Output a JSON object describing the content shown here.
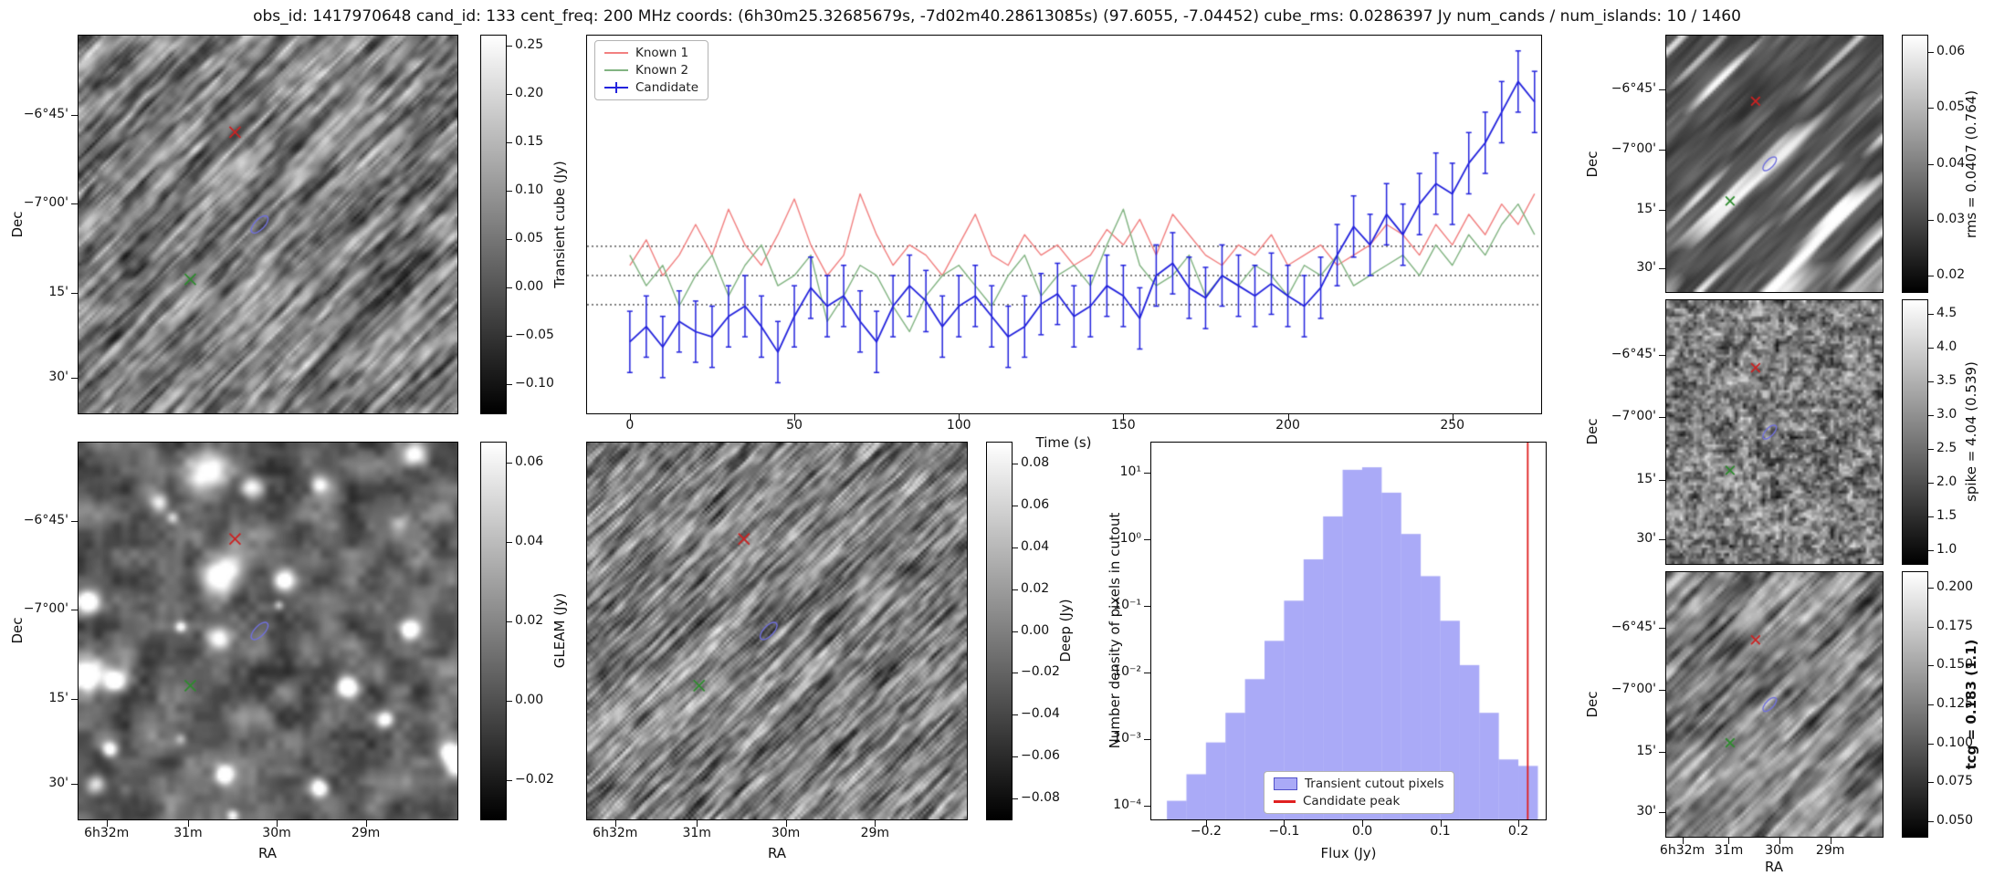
{
  "title": "obs_id: 1417970648 cand_id: 133 cent_freq: 200 MHz coords: (6h30m25.32685679s, -7d02m40.28613085s) (97.6055, -7.04452) cube_rms: 0.0286397 Jy num_cands / num_islands: 10 / 1460",
  "axes": {
    "dec_label": "Dec",
    "ra_label": "RA",
    "dec_ticks": [
      "−6°45'",
      "−7°00'",
      "15'",
      "30'"
    ],
    "ra_ticks": [
      "6h32m",
      "31m",
      "30m",
      "29m"
    ]
  },
  "colorbars": {
    "transient": {
      "label": "Transient cube (Jy)",
      "ticks": [
        {
          "v": 0.25,
          "t": "0.25"
        },
        {
          "v": 0.2,
          "t": "0.20"
        },
        {
          "v": 0.15,
          "t": "0.15"
        },
        {
          "v": 0.1,
          "t": "0.10"
        },
        {
          "v": 0.05,
          "t": "0.05"
        },
        {
          "v": 0.0,
          "t": "0.00"
        },
        {
          "v": -0.05,
          "t": "−0.05"
        },
        {
          "v": -0.1,
          "t": "−0.10"
        }
      ]
    },
    "gleam": {
      "label": "GLEAM (Jy)",
      "ticks": [
        {
          "v": 0.06,
          "t": "0.06"
        },
        {
          "v": 0.04,
          "t": "0.04"
        },
        {
          "v": 0.02,
          "t": "0.02"
        },
        {
          "v": 0.0,
          "t": "0.00"
        },
        {
          "v": -0.02,
          "t": "−0.02"
        }
      ]
    },
    "deep": {
      "label": "Deep (Jy)",
      "ticks": [
        {
          "v": 0.08,
          "t": "0.08"
        },
        {
          "v": 0.06,
          "t": "0.06"
        },
        {
          "v": 0.04,
          "t": "0.04"
        },
        {
          "v": 0.02,
          "t": "0.02"
        },
        {
          "v": 0.0,
          "t": "0.00"
        },
        {
          "v": -0.02,
          "t": "−0.02"
        },
        {
          "v": -0.04,
          "t": "−0.04"
        },
        {
          "v": -0.06,
          "t": "−0.06"
        },
        {
          "v": -0.08,
          "t": "−0.08"
        }
      ]
    },
    "rms": {
      "label": "rms = 0.0407 (0.764)",
      "ticks": [
        {
          "v": 0.06,
          "t": "0.06"
        },
        {
          "v": 0.05,
          "t": "0.05"
        },
        {
          "v": 0.04,
          "t": "0.04"
        },
        {
          "v": 0.03,
          "t": "0.03"
        },
        {
          "v": 0.02,
          "t": "0.02"
        }
      ]
    },
    "spike": {
      "label": "spike = 4.04 (0.539)",
      "ticks": [
        {
          "v": 4.5,
          "t": "4.5"
        },
        {
          "v": 4.0,
          "t": "4.0"
        },
        {
          "v": 3.5,
          "t": "3.5"
        },
        {
          "v": 3.0,
          "t": "3.0"
        },
        {
          "v": 2.5,
          "t": "2.5"
        },
        {
          "v": 2.0,
          "t": "2.0"
        },
        {
          "v": 1.5,
          "t": "1.5"
        },
        {
          "v": 1.0,
          "t": "1.0"
        }
      ]
    },
    "tcg": {
      "label": "tcg = 0.183 (1.1)",
      "ticks": [
        {
          "v": 0.2,
          "t": "0.200"
        },
        {
          "v": 0.175,
          "t": "0.175"
        },
        {
          "v": 0.15,
          "t": "0.150"
        },
        {
          "v": 0.125,
          "t": "0.125"
        },
        {
          "v": 0.1,
          "t": "0.100"
        },
        {
          "v": 0.075,
          "t": "0.075"
        },
        {
          "v": 0.05,
          "t": "0.050"
        }
      ]
    }
  },
  "markers": {
    "red_cross": [
      0.413,
      0.256
    ],
    "blue_ellipse": [
      0.478,
      0.5
    ],
    "green_cross": [
      0.295,
      0.645
    ],
    "colors": {
      "red": "#cc2222",
      "green": "#2e8b2e",
      "blue": "#7070dd"
    }
  },
  "chart_data": [
    {
      "id": "lightcurve",
      "type": "line",
      "xlabel": "Time (s)",
      "xlim": [
        -13,
        277
      ],
      "ylim": [
        -0.135,
        0.235
      ],
      "x_ticks": [
        0,
        50,
        100,
        150,
        200,
        250
      ],
      "hlines": [
        0.0286,
        0.0,
        -0.0286
      ],
      "legend": [
        "Known 1",
        "Known 2",
        "Candidate"
      ],
      "legend_position": "top-left",
      "colors": {
        "known1": "#f28080",
        "known2": "#82b482",
        "candidate": "#2323dd"
      },
      "x": [
        0,
        5,
        10,
        15,
        20,
        25,
        30,
        35,
        40,
        45,
        50,
        55,
        60,
        65,
        70,
        75,
        80,
        85,
        90,
        95,
        100,
        105,
        110,
        115,
        120,
        125,
        130,
        135,
        140,
        145,
        150,
        155,
        160,
        165,
        170,
        175,
        180,
        185,
        190,
        195,
        200,
        205,
        210,
        215,
        220,
        225,
        230,
        235,
        240,
        245,
        250,
        255,
        260,
        265,
        270,
        275
      ],
      "series": [
        {
          "name": "Known 1",
          "values": [
            0.01,
            0.035,
            0.0,
            0.02,
            0.05,
            0.02,
            0.065,
            0.03,
            0.01,
            0.04,
            0.075,
            0.03,
            0.0,
            0.02,
            0.08,
            0.04,
            0.01,
            0.03,
            0.02,
            0.0,
            0.03,
            0.06,
            0.02,
            0.01,
            0.04,
            0.02,
            0.03,
            0.01,
            0.02,
            0.045,
            0.03,
            0.055,
            0.02,
            0.06,
            0.04,
            0.02,
            0.01,
            0.03,
            0.02,
            0.04,
            0.01,
            0.02,
            0.03,
            0.01,
            0.02,
            0.03,
            0.05,
            0.04,
            0.02,
            0.05,
            0.03,
            0.06,
            0.04,
            0.07,
            0.05,
            0.08
          ]
        },
        {
          "name": "Known 2",
          "values": [
            0.02,
            -0.01,
            0.01,
            -0.03,
            0.0,
            0.02,
            -0.02,
            0.01,
            0.03,
            -0.01,
            0.0,
            0.02,
            -0.045,
            -0.02,
            0.01,
            0.0,
            -0.03,
            -0.055,
            -0.02,
            0.0,
            0.01,
            -0.01,
            -0.03,
            0.0,
            0.02,
            -0.02,
            0.0,
            0.01,
            -0.01,
            0.03,
            0.065,
            0.01,
            -0.01,
            0.0,
            0.02,
            -0.02,
            0.0,
            -0.01,
            0.01,
            0.0,
            -0.02,
            0.01,
            0.0,
            0.02,
            -0.01,
            0.0,
            0.01,
            0.02,
            0.0,
            0.03,
            0.01,
            0.04,
            0.02,
            0.05,
            0.07,
            0.04
          ]
        },
        {
          "name": "Candidate",
          "yerr": 0.03,
          "values": [
            -0.065,
            -0.05,
            -0.07,
            -0.045,
            -0.055,
            -0.06,
            -0.04,
            -0.03,
            -0.05,
            -0.075,
            -0.04,
            -0.012,
            -0.03,
            -0.02,
            -0.045,
            -0.065,
            -0.03,
            -0.01,
            -0.025,
            -0.05,
            -0.03,
            -0.02,
            -0.04,
            -0.06,
            -0.05,
            -0.028,
            -0.018,
            -0.04,
            -0.03,
            -0.01,
            -0.02,
            -0.042,
            0.0,
            0.012,
            -0.012,
            -0.022,
            0.0,
            -0.01,
            -0.02,
            -0.008,
            -0.02,
            -0.03,
            -0.012,
            0.02,
            0.048,
            0.03,
            0.06,
            0.04,
            0.07,
            0.09,
            0.08,
            0.11,
            0.13,
            0.16,
            0.19,
            0.17
          ]
        }
      ]
    },
    {
      "id": "flux-histogram",
      "type": "histogram",
      "xlabel": "Flux (Jy)",
      "ylabel": "Number density of pixels in cutout",
      "xlim": [
        -0.27,
        0.235
      ],
      "ylog_range": [
        -4.2,
        1.45
      ],
      "x_ticks": [
        -0.2,
        -0.1,
        0.0,
        0.1,
        0.2
      ],
      "x_tick_labels": [
        "−0.2",
        "−0.1",
        "0.0",
        "0.1",
        "0.2"
      ],
      "y_tick_exponents": [
        1,
        0,
        -1,
        -2,
        -3,
        -4
      ],
      "y_tick_labels": [
        "10¹",
        "10⁰",
        "10⁻¹",
        "10⁻²",
        "10⁻³",
        "10⁻⁴"
      ],
      "bin_edges": [
        -0.25,
        -0.225,
        -0.2,
        -0.175,
        -0.15,
        -0.125,
        -0.1,
        -0.075,
        -0.05,
        -0.025,
        0.0,
        0.025,
        0.05,
        0.075,
        0.1,
        0.125,
        0.15,
        0.175,
        0.2,
        0.225
      ],
      "densities": [
        0.00012,
        0.0003,
        0.0009,
        0.0025,
        0.008,
        0.03,
        0.12,
        0.5,
        2.2,
        11,
        12,
        5,
        1.2,
        0.28,
        0.06,
        0.013,
        0.0025,
        0.0005,
        0.0004
      ],
      "candidate_peak": 0.212,
      "bar_color": "rgba(100,100,240,0.55)",
      "bar_edge": "#5050c8",
      "line_color": "#e02020",
      "legend": [
        "Transient cutout pixels",
        "Candidate peak"
      ],
      "legend_position": "bottom-center"
    }
  ]
}
